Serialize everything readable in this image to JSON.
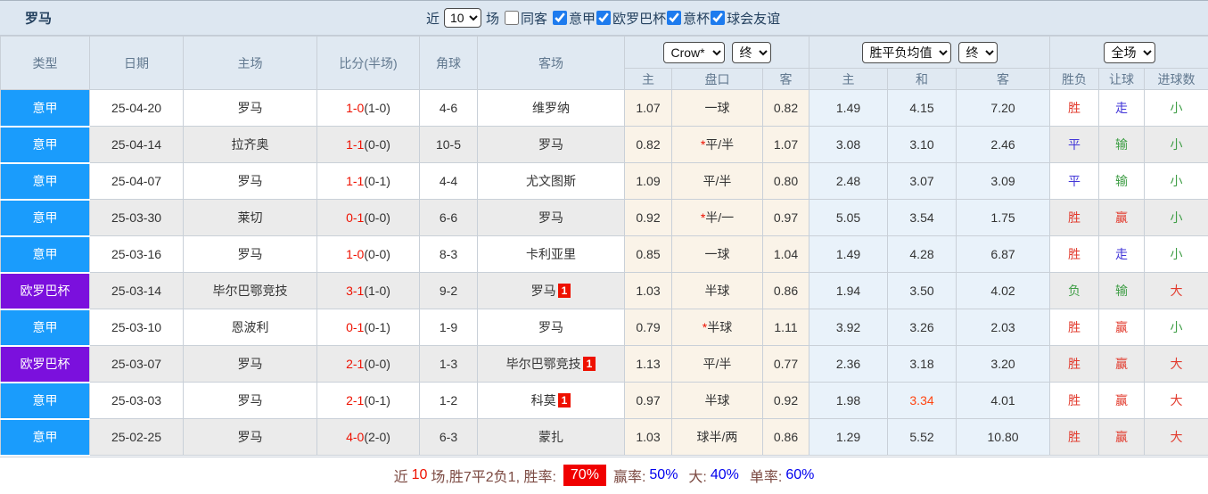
{
  "topbar": {
    "team_title": "罗马",
    "recent_label": "近",
    "recent_value": "10",
    "games_label": "场",
    "same_away_label": "同客",
    "filters": [
      {
        "label": "意甲",
        "checked": true
      },
      {
        "label": "欧罗巴杯",
        "checked": true
      },
      {
        "label": "意杯",
        "checked": true
      },
      {
        "label": "球会友谊",
        "checked": true
      }
    ]
  },
  "header": {
    "col_type": "类型",
    "col_date": "日期",
    "col_home": "主场",
    "col_score": "比分(半场)",
    "col_corner": "角球",
    "col_away": "客场",
    "selects": {
      "bookmaker": "Crow*",
      "bookmaker_state": "终",
      "europe": "胜平负均值",
      "europe_state": "终",
      "scope": "全场"
    },
    "sub": {
      "home": "主",
      "handicap": "盘口",
      "away": "客",
      "e_home": "主",
      "e_draw": "和",
      "e_away": "客",
      "result": "胜负",
      "give": "让球",
      "goals": "进球数"
    }
  },
  "rows": [
    {
      "league": "意甲",
      "lkey": "seriea",
      "date": "25-04-20",
      "home": "罗马",
      "home_roma": true,
      "home_badge": "",
      "score": "1-0",
      "half": "(1-0)",
      "corners": "4-6",
      "away": "维罗纳",
      "away_roma": false,
      "away_badge": "",
      "odds_home": "1.07",
      "star": "",
      "handicap": "一球",
      "odds_away": "0.82",
      "mean_home": "1.49",
      "mean_draw": "4.15",
      "mean_away": "7.20",
      "mean_hot": false,
      "result": [
        "胜",
        "red"
      ],
      "give": [
        "走",
        "blue"
      ],
      "goal": [
        "小",
        "green"
      ]
    },
    {
      "league": "意甲",
      "lkey": "seriea",
      "date": "25-04-14",
      "home": "拉齐奥",
      "home_roma": false,
      "home_badge": "",
      "score": "1-1",
      "half": "(0-0)",
      "corners": "10-5",
      "away": "罗马",
      "away_roma": true,
      "away_badge": "",
      "odds_home": "0.82",
      "star": "*",
      "handicap": "平/半",
      "odds_away": "1.07",
      "mean_home": "3.08",
      "mean_draw": "3.10",
      "mean_away": "2.46",
      "mean_hot": false,
      "result": [
        "平",
        "blue"
      ],
      "give": [
        "输",
        "green"
      ],
      "goal": [
        "小",
        "green"
      ]
    },
    {
      "league": "意甲",
      "lkey": "seriea",
      "date": "25-04-07",
      "home": "罗马",
      "home_roma": true,
      "home_badge": "",
      "score": "1-1",
      "half": "(0-1)",
      "corners": "4-4",
      "away": "尤文图斯",
      "away_roma": false,
      "away_badge": "",
      "odds_home": "1.09",
      "star": "",
      "handicap": "平/半",
      "odds_away": "0.80",
      "mean_home": "2.48",
      "mean_draw": "3.07",
      "mean_away": "3.09",
      "mean_hot": false,
      "result": [
        "平",
        "blue"
      ],
      "give": [
        "输",
        "green"
      ],
      "goal": [
        "小",
        "green"
      ]
    },
    {
      "league": "意甲",
      "lkey": "seriea",
      "date": "25-03-30",
      "home": "莱切",
      "home_roma": false,
      "home_badge": "",
      "score": "0-1",
      "half": "(0-0)",
      "corners": "6-6",
      "away": "罗马",
      "away_roma": true,
      "away_badge": "",
      "odds_home": "0.92",
      "star": "*",
      "handicap": "半/一",
      "odds_away": "0.97",
      "mean_home": "5.05",
      "mean_draw": "3.54",
      "mean_away": "1.75",
      "mean_hot": false,
      "result": [
        "胜",
        "red"
      ],
      "give": [
        "赢",
        "red"
      ],
      "goal": [
        "小",
        "green"
      ]
    },
    {
      "league": "意甲",
      "lkey": "seriea",
      "date": "25-03-16",
      "home": "罗马",
      "home_roma": true,
      "home_badge": "",
      "score": "1-0",
      "half": "(0-0)",
      "corners": "8-3",
      "away": "卡利亚里",
      "away_roma": false,
      "away_badge": "",
      "odds_home": "0.85",
      "star": "",
      "handicap": "一球",
      "odds_away": "1.04",
      "mean_home": "1.49",
      "mean_draw": "4.28",
      "mean_away": "6.87",
      "mean_hot": false,
      "result": [
        "胜",
        "red"
      ],
      "give": [
        "走",
        "blue"
      ],
      "goal": [
        "小",
        "green"
      ]
    },
    {
      "league": "欧罗巴杯",
      "lkey": "europa",
      "date": "25-03-14",
      "home": "毕尔巴鄂竞技",
      "home_roma": false,
      "home_badge": "",
      "score": "3-1",
      "half": "(1-0)",
      "corners": "9-2",
      "away": "罗马",
      "away_roma": true,
      "away_badge": "1",
      "odds_home": "1.03",
      "star": "",
      "handicap": "半球",
      "odds_away": "0.86",
      "mean_home": "1.94",
      "mean_draw": "3.50",
      "mean_away": "4.02",
      "mean_hot": false,
      "result": [
        "负",
        "green"
      ],
      "give": [
        "输",
        "green"
      ],
      "goal": [
        "大",
        "red"
      ]
    },
    {
      "league": "意甲",
      "lkey": "seriea",
      "date": "25-03-10",
      "home": "恩波利",
      "home_roma": false,
      "home_badge": "",
      "score": "0-1",
      "half": "(0-1)",
      "corners": "1-9",
      "away": "罗马",
      "away_roma": true,
      "away_badge": "",
      "odds_home": "0.79",
      "star": "*",
      "handicap": "半球",
      "odds_away": "1.11",
      "mean_home": "3.92",
      "mean_draw": "3.26",
      "mean_away": "2.03",
      "mean_hot": false,
      "result": [
        "胜",
        "red"
      ],
      "give": [
        "赢",
        "red"
      ],
      "goal": [
        "小",
        "green"
      ]
    },
    {
      "league": "欧罗巴杯",
      "lkey": "europa",
      "date": "25-03-07",
      "home": "罗马",
      "home_roma": true,
      "home_badge": "",
      "score": "2-1",
      "half": "(0-0)",
      "corners": "1-3",
      "away": "毕尔巴鄂竞技",
      "away_roma": false,
      "away_badge": "1",
      "odds_home": "1.13",
      "star": "",
      "handicap": "平/半",
      "odds_away": "0.77",
      "mean_home": "2.36",
      "mean_draw": "3.18",
      "mean_away": "3.20",
      "mean_hot": false,
      "result": [
        "胜",
        "red"
      ],
      "give": [
        "赢",
        "red"
      ],
      "goal": [
        "大",
        "red"
      ]
    },
    {
      "league": "意甲",
      "lkey": "seriea",
      "date": "25-03-03",
      "home": "罗马",
      "home_roma": true,
      "home_badge": "",
      "score": "2-1",
      "half": "(0-1)",
      "corners": "1-2",
      "away": "科莫",
      "away_roma": false,
      "away_badge": "1",
      "odds_home": "0.97",
      "star": "",
      "handicap": "半球",
      "odds_away": "0.92",
      "mean_home": "1.98",
      "mean_draw": "3.34",
      "mean_away": "4.01",
      "mean_hot": true,
      "result": [
        "胜",
        "red"
      ],
      "give": [
        "赢",
        "red"
      ],
      "goal": [
        "大",
        "red"
      ]
    },
    {
      "league": "意甲",
      "lkey": "seriea",
      "date": "25-02-25",
      "home": "罗马",
      "home_roma": true,
      "home_badge": "",
      "score": "4-0",
      "half": "(2-0)",
      "corners": "6-3",
      "away": "蒙扎",
      "away_roma": false,
      "away_badge": "",
      "odds_home": "1.03",
      "star": "",
      "handicap": "球半/两",
      "odds_away": "0.86",
      "mean_home": "1.29",
      "mean_draw": "5.52",
      "mean_away": "10.80",
      "mean_hot": false,
      "result": [
        "胜",
        "red"
      ],
      "give": [
        "赢",
        "red"
      ],
      "goal": [
        "大",
        "red"
      ]
    }
  ],
  "footer": {
    "seg1": "近",
    "seg2": "10",
    "seg3": "场,胜7平2负1, 胜率:",
    "rate": "70%",
    "win_label": "赢率:",
    "win": "50%",
    "big_label": "大:",
    "big": "40%",
    "single_label": "单率:",
    "single": "60%"
  },
  "colors": {
    "seriea": "#1a9cfc",
    "europa": "#7b10dd",
    "roma_green": "#548a56",
    "score_red": "#ee1100",
    "win_red": "#e23b2e",
    "draw_blue": "#4236d8",
    "loss_green": "#3f9e46",
    "hot_orange": "#ff4411",
    "rate_badge_bg": "#f00000"
  }
}
